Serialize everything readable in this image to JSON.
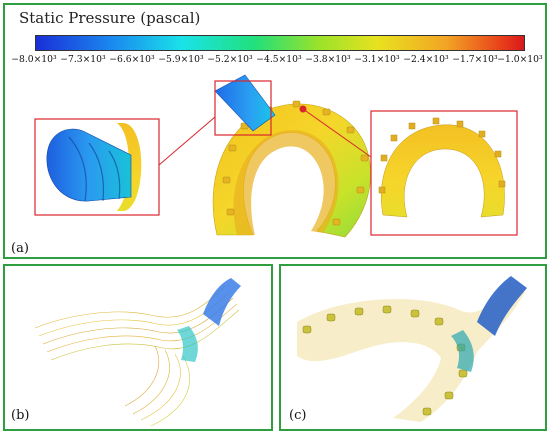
{
  "colorbar": {
    "title": "Static Pressure (pascal)",
    "tick_labels": [
      "−8.0×10³",
      "−7.3×10³",
      "−6.6×10³",
      "−5.9×10³",
      "−5.2×10³",
      "−4.5×10³",
      "−3.8×10³",
      "−3.1×10³",
      "−2.4×10³",
      "−1.7×10³",
      "−1.0×10³"
    ]
  },
  "panels": {
    "a": {
      "label": "(a)"
    },
    "b": {
      "label": "(b)"
    },
    "c": {
      "label": "(c)"
    }
  },
  "colors": {
    "frame": "#2e9e3e",
    "callout": "#d9262c"
  }
}
